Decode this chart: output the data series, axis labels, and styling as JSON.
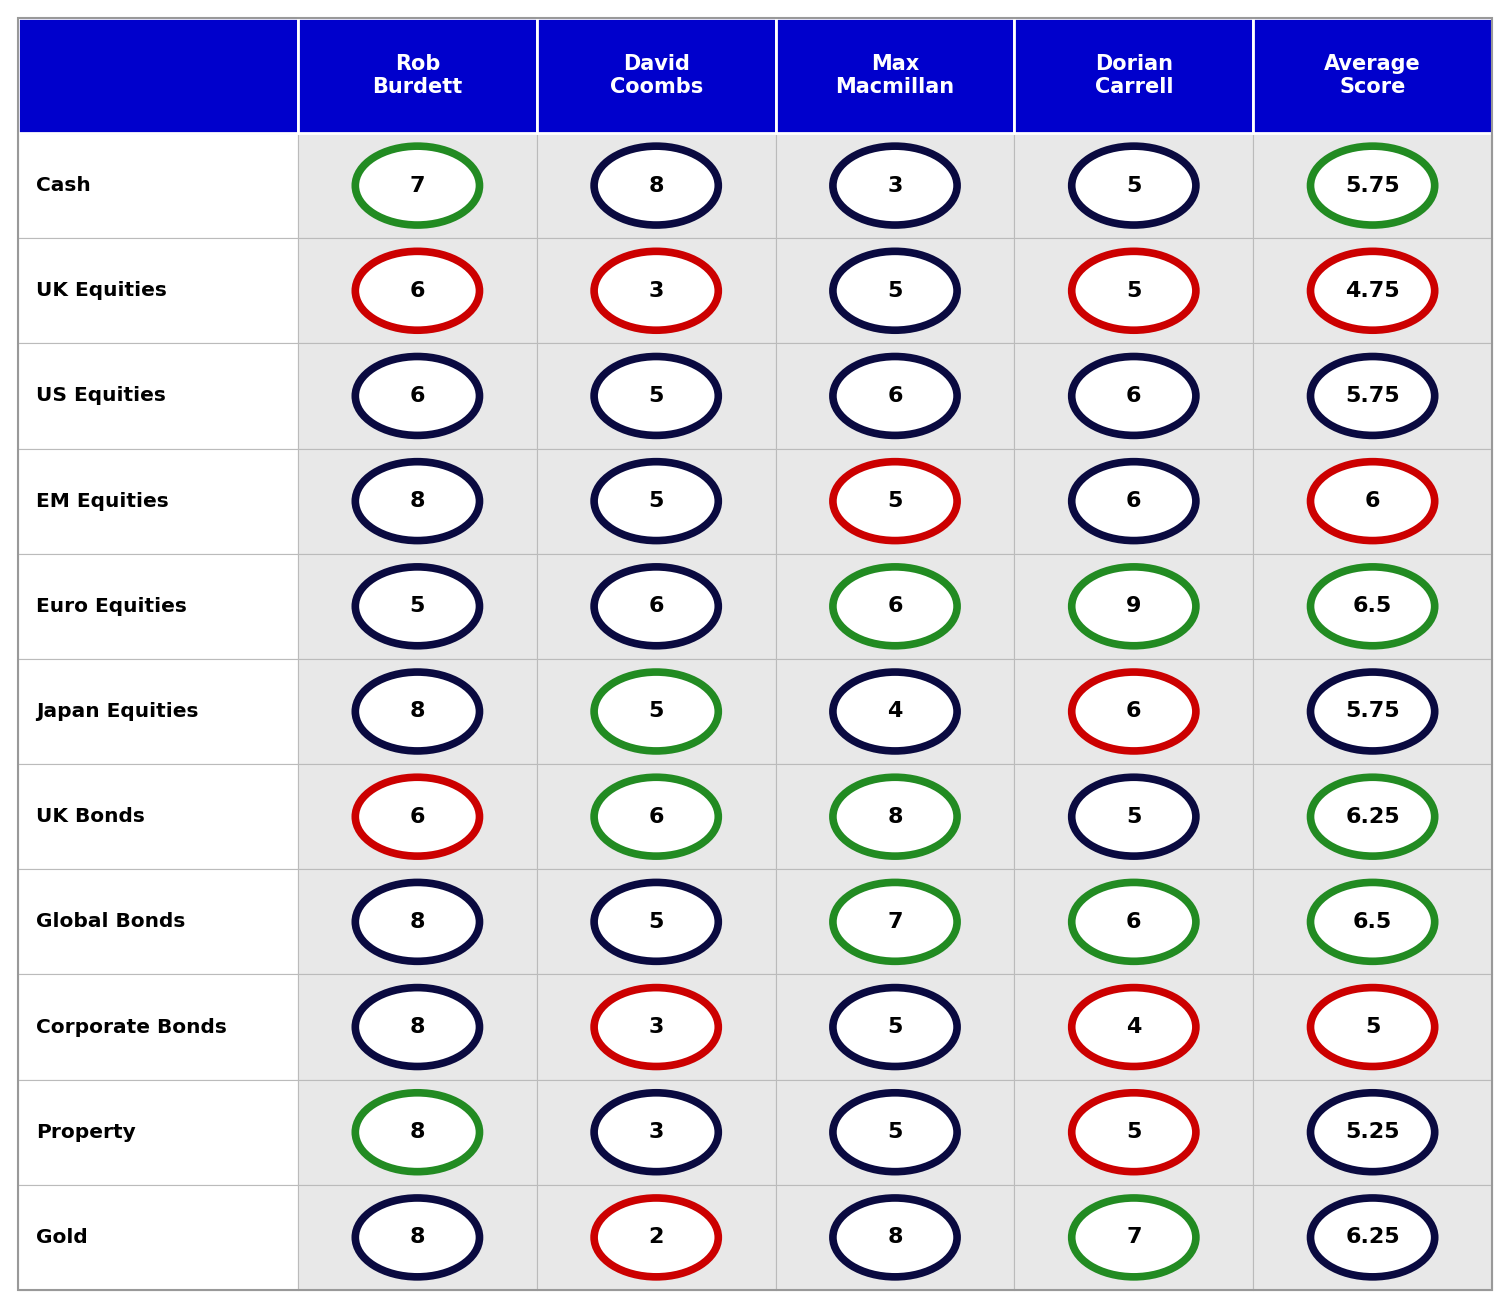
{
  "header_bg": "#0000CC",
  "header_text_color": "#FFFFFF",
  "label_col_bg": "#FFFFFF",
  "data_cell_bg": "#E8E8E8",
  "grid_color": "#BBBBBB",
  "col_labels": [
    "Rob\nBurdett",
    "David\nCoombs",
    "Max\nMacmillan",
    "Dorian\nCarrell",
    "Average\nScore"
  ],
  "row_labels": [
    "Cash",
    "UK Equities",
    "US Equities",
    "EM Equities",
    "Euro Equities",
    "Japan Equities",
    "UK Bonds",
    "Global Bonds",
    "Corporate Bonds",
    "Property",
    "Gold"
  ],
  "values": [
    [
      7,
      8,
      3,
      5,
      5.75
    ],
    [
      6,
      3,
      5,
      5,
      4.75
    ],
    [
      6,
      5,
      6,
      6,
      5.75
    ],
    [
      8,
      5,
      5,
      6,
      6
    ],
    [
      5,
      6,
      6,
      9,
      6.5
    ],
    [
      8,
      5,
      4,
      6,
      5.75
    ],
    [
      6,
      6,
      8,
      5,
      6.25
    ],
    [
      8,
      5,
      7,
      6,
      6.5
    ],
    [
      8,
      3,
      5,
      4,
      5
    ],
    [
      8,
      3,
      5,
      5,
      5.25
    ],
    [
      8,
      2,
      8,
      7,
      6.25
    ]
  ],
  "circle_colors": [
    [
      "green",
      "navy",
      "navy",
      "navy",
      "green"
    ],
    [
      "red",
      "red",
      "navy",
      "red",
      "red"
    ],
    [
      "navy",
      "navy",
      "navy",
      "navy",
      "navy"
    ],
    [
      "navy",
      "navy",
      "red",
      "navy",
      "red"
    ],
    [
      "navy",
      "navy",
      "green",
      "green",
      "green"
    ],
    [
      "navy",
      "green",
      "navy",
      "red",
      "navy"
    ],
    [
      "red",
      "green",
      "green",
      "navy",
      "green"
    ],
    [
      "navy",
      "navy",
      "green",
      "green",
      "green"
    ],
    [
      "navy",
      "red",
      "navy",
      "red",
      "red"
    ],
    [
      "green",
      "navy",
      "navy",
      "red",
      "navy"
    ],
    [
      "navy",
      "red",
      "navy",
      "green",
      "navy"
    ]
  ],
  "color_map": {
    "green": "#228B22",
    "red": "#CC0000",
    "navy": "#0A0A40"
  },
  "figsize": [
    15.1,
    13.08
  ],
  "dpi": 100
}
